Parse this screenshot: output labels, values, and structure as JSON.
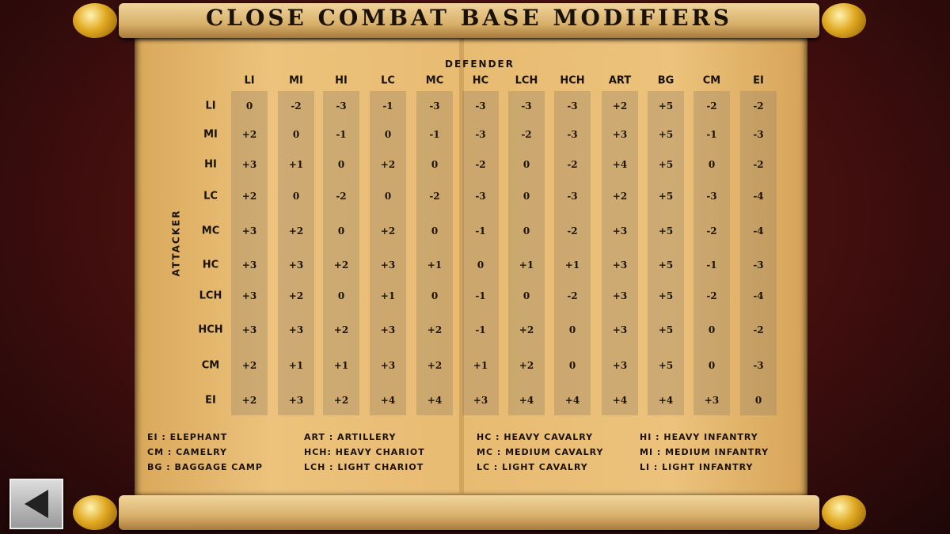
{
  "title": "CLOSE COMBAT BASE MODIFIERS",
  "defender_label": "DEFENDER",
  "attacker_label": "ATTACKER",
  "columns": [
    "LI",
    "MI",
    "HI",
    "LC",
    "MC",
    "HC",
    "LCH",
    "HCH",
    "ART",
    "BG",
    "CM",
    "EI"
  ],
  "rows": [
    "LI",
    "MI",
    "HI",
    "LC",
    "MC",
    "HC",
    "LCH",
    "HCH",
    "CM",
    "EI"
  ],
  "values": [
    [
      "0",
      "-2",
      "-3",
      "-1",
      "-3",
      "-3",
      "-3",
      "-3",
      "+2",
      "+5",
      "-2",
      "-2"
    ],
    [
      "+2",
      "0",
      "-1",
      "0",
      "-1",
      "-3",
      "-2",
      "-3",
      "+3",
      "+5",
      "-1",
      "-3"
    ],
    [
      "+3",
      "+1",
      "0",
      "+2",
      "0",
      "-2",
      "0",
      "-2",
      "+4",
      "+5",
      "0",
      "-2"
    ],
    [
      "+2",
      "0",
      "-2",
      "0",
      "-2",
      "-3",
      "0",
      "-3",
      "+2",
      "+5",
      "-3",
      "-4"
    ],
    [
      "+3",
      "+2",
      "0",
      "+2",
      "0",
      "-1",
      "0",
      "-2",
      "+3",
      "+5",
      "-2",
      "-4"
    ],
    [
      "+3",
      "+3",
      "+2",
      "+3",
      "+1",
      "0",
      "+1",
      "+1",
      "+3",
      "+5",
      "-1",
      "-3"
    ],
    [
      "+3",
      "+2",
      "0",
      "+1",
      "0",
      "-1",
      "0",
      "-2",
      "+3",
      "+5",
      "-2",
      "-4"
    ],
    [
      "+3",
      "+3",
      "+2",
      "+3",
      "+2",
      "-1",
      "+2",
      "0",
      "+3",
      "+5",
      "0",
      "-2"
    ],
    [
      "+2",
      "+1",
      "+1",
      "+3",
      "+2",
      "+1",
      "+2",
      "0",
      "+3",
      "+5",
      "0",
      "-3"
    ],
    [
      "+2",
      "+3",
      "+2",
      "+4",
      "+4",
      "+3",
      "+4",
      "+4",
      "+4",
      "+4",
      "+3",
      "0"
    ]
  ],
  "legend": [
    [
      "EI : ELEPHANT",
      "CM : CAMELRY",
      "BG : BAGGAGE CAMP"
    ],
    [
      "ART : ARTILLERY",
      "HCH: HEAVY CHARIOT",
      "LCH : LIGHT CHARIOT"
    ],
    [
      "HC : HEAVY CAVALRY",
      "MC : MEDIUM CAVALRY",
      "LC : LIGHT CAVALRY"
    ],
    [
      "HI : HEAVY INFANTRY",
      "MI : MEDIUM INFANTRY",
      "LI : LIGHT INFANTRY"
    ]
  ],
  "back_icon": "back-arrow-icon"
}
